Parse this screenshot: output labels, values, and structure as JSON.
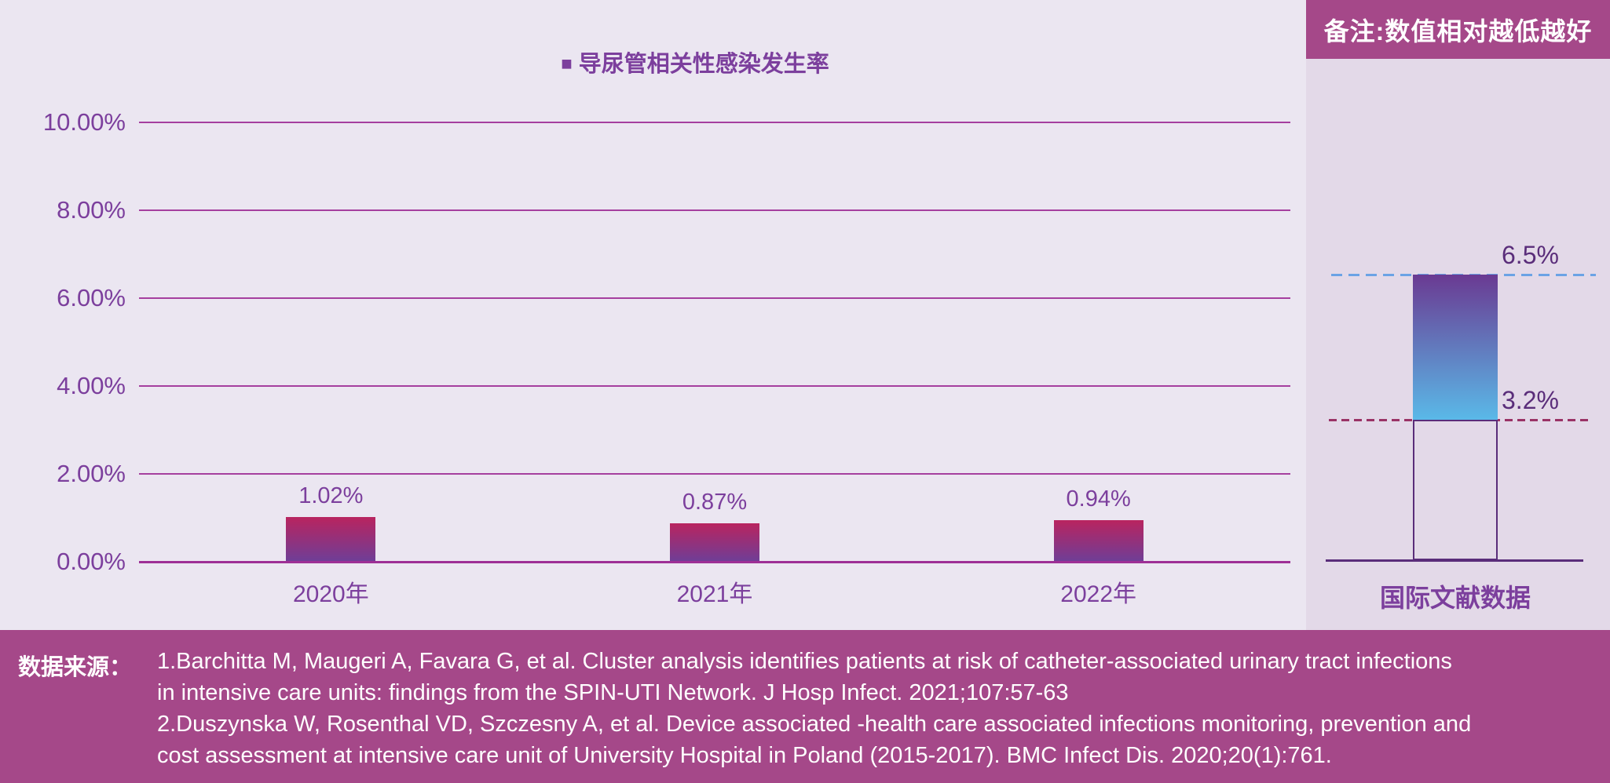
{
  "title": {
    "legend_marker": "■",
    "text": "导尿管相关性感染发生率"
  },
  "note": {
    "text": "备注:数值相对越低越好"
  },
  "source": {
    "label": "数据来源：",
    "lines": [
      "1.Barchitta M, Maugeri A, Favara G, et al. Cluster analysis identifies patients at risk of catheter-associated urinary tract infections",
      "in intensive care units: findings from the SPIN-UTI Network. J Hosp Infect. 2021;107:57-63",
      "2.Duszynska W, Rosenthal VD, Szczesny A, et al. Device associated -health care associated infections monitoring, prevention and",
      "cost assessment at intensive care unit of University Hospital in Poland (2015-2017). BMC Infect Dis. 2020;20(1):761."
    ]
  },
  "colors": {
    "main_bg": "#ebe6f1",
    "panel_bg": "#e3d9e8",
    "band_magenta": "#a54889",
    "text_purple": "#7c3f9d",
    "dark_purple": "#5a2d7a",
    "gridline": "#a53f9f",
    "baseline": "#9e2f96",
    "bar_top": "#b9245f",
    "bar_bottom": "#6e3e97",
    "range_bar_top": "#6a3a92",
    "range_bar_bottom": "#5ab9e8",
    "dashed_blue": "#6ba3e5",
    "dashed_maroon": "#9a3366",
    "footer_text": "#ffffff"
  },
  "chart_data": [
    {
      "type": "bar",
      "title": "导尿管相关性感染发生率",
      "legend": {
        "marker": "■",
        "label": "导尿管相关性感染发生率",
        "position": "top-center"
      },
      "categories": [
        "2020年",
        "2021年",
        "2022年"
      ],
      "values": [
        1.02,
        0.87,
        0.94
      ],
      "value_labels": [
        "1.02%",
        "0.87%",
        "0.94%"
      ],
      "xlabel": "",
      "ylabel": "",
      "ylim": [
        0,
        10
      ],
      "y_ticks": [
        {
          "value": 0,
          "label": "0.00%"
        },
        {
          "value": 2,
          "label": "2.00%"
        },
        {
          "value": 4,
          "label": "4.00%"
        },
        {
          "value": 6,
          "label": "6.00%"
        },
        {
          "value": 8,
          "label": "8.00%"
        },
        {
          "value": 10,
          "label": "10.00%"
        }
      ],
      "grid": true,
      "unit": "%"
    },
    {
      "type": "bar",
      "subtype": "floating-range",
      "categories": [
        "国际文献数据"
      ],
      "range": {
        "low": 3.2,
        "high": 6.5
      },
      "low_label": "3.2%",
      "high_label": "6.5%",
      "ylim": [
        0,
        10
      ],
      "note": "备注:数值相对越低越好",
      "unit": "%"
    }
  ]
}
